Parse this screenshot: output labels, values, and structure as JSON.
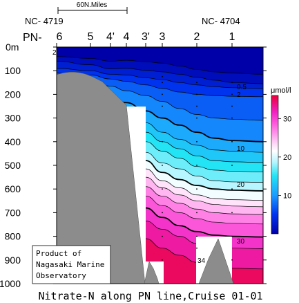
{
  "title": "Nitrate-N along PN line,Cruise 01-01",
  "scale_bar_label": "60N.Miles",
  "end_labels": {
    "left": "NC- 4719",
    "right": "NC- 4704"
  },
  "line_prefix": "PN-",
  "stations": [
    "6",
    "5",
    "4'",
    "4",
    "3'",
    "3",
    "2",
    "1"
  ],
  "depth_axis": {
    "unit_label": "0m",
    "ticks": [
      "100",
      "200",
      "300",
      "400",
      "500",
      "600",
      "700",
      "800",
      "900",
      "1000"
    ]
  },
  "colorbar": {
    "unit_label": "μmol/l",
    "tick_labels": [
      "30",
      "20",
      "10"
    ]
  },
  "contour_labels": [
    "2",
    "0.5",
    "2",
    "10",
    "20",
    "30",
    "34"
  ],
  "credit_lines": [
    "Product of",
    "Nagasaki Marine",
    "Observatory"
  ],
  "chart_data": {
    "type": "contour-section",
    "title": "Nitrate-N along PN line,Cruise 01-01",
    "variable": "Nitrate-N",
    "unit": "μmol/l",
    "y_axis": {
      "min": 0,
      "max": 1000,
      "inverted": true
    },
    "colorbar_range": [
      0,
      36
    ],
    "colorbar_ticks": [
      10,
      20,
      30
    ],
    "stations": [
      "6",
      "5",
      "4'",
      "4",
      "3'",
      "3",
      "2",
      "1"
    ],
    "contour_levels": [
      0.5,
      2,
      4,
      6,
      8,
      10,
      12,
      14,
      16,
      18,
      20,
      22,
      24,
      26,
      28,
      30,
      32,
      34
    ],
    "highlighted_levels": [
      10,
      20,
      30
    ],
    "labeled_contours": [
      {
        "value": 2,
        "near_station": "6",
        "depth": 20
      },
      {
        "value": 0.5,
        "near_station": "1",
        "depth": 120
      },
      {
        "value": 2,
        "near_station": "1",
        "depth": 150
      },
      {
        "value": 10,
        "near_station": "1",
        "depth": 400
      },
      {
        "value": 20,
        "near_station": "1",
        "depth": 600
      },
      {
        "value": 30,
        "near_station": "1",
        "depth": 800
      },
      {
        "value": 34,
        "near_station": "2",
        "depth": 880
      }
    ]
  }
}
